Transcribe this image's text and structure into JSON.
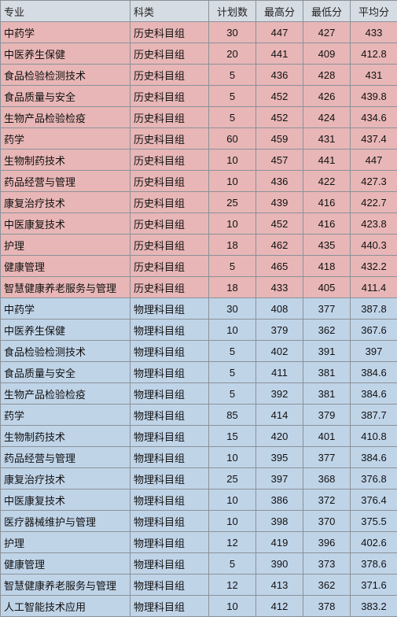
{
  "headers": [
    "专业",
    "科类",
    "计划数",
    "最高分",
    "最低分",
    "平均分"
  ],
  "colors": {
    "header_bg": "#d6dce3",
    "pink_bg": "#e8b6b6",
    "blue_bg": "#c0d4e8",
    "border": "#8a9299",
    "text": "#111111"
  },
  "rows": [
    {
      "group": "pink",
      "major": "中药学",
      "category": "历史科目组",
      "plan": "30",
      "max": "447",
      "min": "427",
      "avg": "433"
    },
    {
      "group": "pink",
      "major": "中医养生保健",
      "category": "历史科目组",
      "plan": "20",
      "max": "441",
      "min": "409",
      "avg": "412.8"
    },
    {
      "group": "pink",
      "major": "食品检验检测技术",
      "category": "历史科目组",
      "plan": "5",
      "max": "436",
      "min": "428",
      "avg": "431"
    },
    {
      "group": "pink",
      "major": "食品质量与安全",
      "category": "历史科目组",
      "plan": "5",
      "max": "452",
      "min": "426",
      "avg": "439.8"
    },
    {
      "group": "pink",
      "major": "生物产品检验检疫",
      "category": "历史科目组",
      "plan": "5",
      "max": "452",
      "min": "424",
      "avg": "434.6"
    },
    {
      "group": "pink",
      "major": "药学",
      "category": "历史科目组",
      "plan": "60",
      "max": "459",
      "min": "431",
      "avg": "437.4"
    },
    {
      "group": "pink",
      "major": "生物制药技术",
      "category": "历史科目组",
      "plan": "10",
      "max": "457",
      "min": "441",
      "avg": "447"
    },
    {
      "group": "pink",
      "major": "药品经营与管理",
      "category": "历史科目组",
      "plan": "10",
      "max": "436",
      "min": "422",
      "avg": "427.3"
    },
    {
      "group": "pink",
      "major": "康复治疗技术",
      "category": "历史科目组",
      "plan": "25",
      "max": "439",
      "min": "416",
      "avg": "422.7"
    },
    {
      "group": "pink",
      "major": "中医康复技术",
      "category": "历史科目组",
      "plan": "10",
      "max": "452",
      "min": "416",
      "avg": "423.8"
    },
    {
      "group": "pink",
      "major": "护理",
      "category": "历史科目组",
      "plan": "18",
      "max": "462",
      "min": "435",
      "avg": "440.3"
    },
    {
      "group": "pink",
      "major": "健康管理",
      "category": "历史科目组",
      "plan": "5",
      "max": "465",
      "min": "418",
      "avg": "432.2"
    },
    {
      "group": "pink",
      "major": "智慧健康养老服务与管理",
      "category": "历史科目组",
      "plan": "18",
      "max": "433",
      "min": "405",
      "avg": "411.4"
    },
    {
      "group": "blue",
      "major": "中药学",
      "category": "物理科目组",
      "plan": "30",
      "max": "408",
      "min": "377",
      "avg": "387.8"
    },
    {
      "group": "blue",
      "major": "中医养生保健",
      "category": "物理科目组",
      "plan": "10",
      "max": "379",
      "min": "362",
      "avg": "367.6"
    },
    {
      "group": "blue",
      "major": "食品检验检测技术",
      "category": "物理科目组",
      "plan": "5",
      "max": "402",
      "min": "391",
      "avg": "397"
    },
    {
      "group": "blue",
      "major": "食品质量与安全",
      "category": "物理科目组",
      "plan": "5",
      "max": "411",
      "min": "381",
      "avg": "384.6"
    },
    {
      "group": "blue",
      "major": "生物产品检验检疫",
      "category": "物理科目组",
      "plan": "5",
      "max": "392",
      "min": "381",
      "avg": "384.6"
    },
    {
      "group": "blue",
      "major": "药学",
      "category": "物理科目组",
      "plan": "85",
      "max": "414",
      "min": "379",
      "avg": "387.7"
    },
    {
      "group": "blue",
      "major": "生物制药技术",
      "category": "物理科目组",
      "plan": "15",
      "max": "420",
      "min": "401",
      "avg": "410.8"
    },
    {
      "group": "blue",
      "major": "药品经营与管理",
      "category": "物理科目组",
      "plan": "10",
      "max": "395",
      "min": "377",
      "avg": "384.6"
    },
    {
      "group": "blue",
      "major": "康复治疗技术",
      "category": "物理科目组",
      "plan": "25",
      "max": "397",
      "min": "368",
      "avg": "376.8"
    },
    {
      "group": "blue",
      "major": "中医康复技术",
      "category": "物理科目组",
      "plan": "10",
      "max": "386",
      "min": "372",
      "avg": "376.4"
    },
    {
      "group": "blue",
      "major": "医疗器械维护与管理",
      "category": "物理科目组",
      "plan": "10",
      "max": "398",
      "min": "370",
      "avg": "375.5"
    },
    {
      "group": "blue",
      "major": "护理",
      "category": "物理科目组",
      "plan": "12",
      "max": "419",
      "min": "396",
      "avg": "402.6"
    },
    {
      "group": "blue",
      "major": "健康管理",
      "category": "物理科目组",
      "plan": "5",
      "max": "390",
      "min": "373",
      "avg": "378.6"
    },
    {
      "group": "blue",
      "major": "智慧健康养老服务与管理",
      "category": "物理科目组",
      "plan": "12",
      "max": "413",
      "min": "362",
      "avg": "371.6"
    },
    {
      "group": "blue",
      "major": "人工智能技术应用",
      "category": "物理科目组",
      "plan": "10",
      "max": "412",
      "min": "378",
      "avg": "383.2"
    }
  ]
}
